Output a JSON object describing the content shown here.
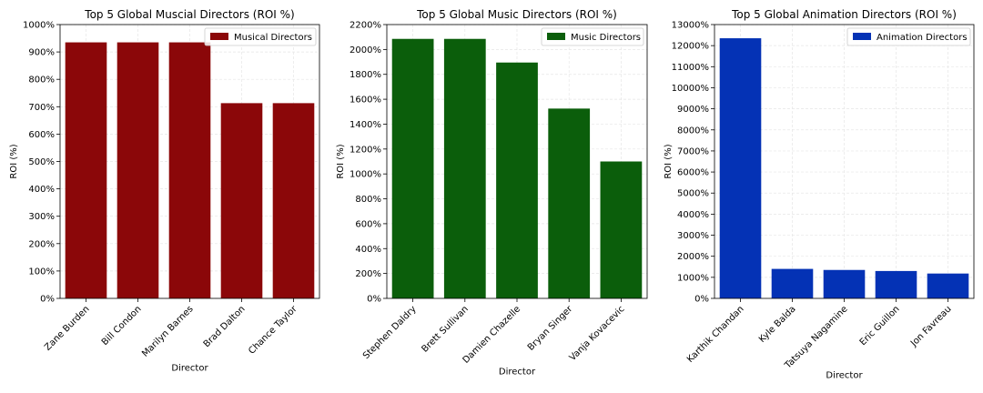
{
  "chart_data": [
    {
      "type": "bar",
      "title": "Top 5 Global Muscial Directors (ROI %)",
      "xlabel": "Director",
      "ylabel": "ROI (%)",
      "categories": [
        "Zane Burden",
        "Bill Condon",
        "Marilyn Barnes",
        "Brad Dalton",
        "Chance Taylor"
      ],
      "series": [
        {
          "name": "Musical Directors",
          "values": [
            935,
            935,
            935,
            713,
            713
          ]
        }
      ],
      "ylim": [
        0,
        1000
      ],
      "yticks": [
        0,
        100,
        200,
        300,
        400,
        500,
        600,
        700,
        800,
        900,
        1000
      ],
      "ytick_labels": [
        "0%",
        "100%",
        "200%",
        "300%",
        "400%",
        "500%",
        "600%",
        "700%",
        "800%",
        "900%",
        "1000%"
      ],
      "color": "#8b0709",
      "grid": true,
      "legend": "top-right"
    },
    {
      "type": "bar",
      "title": "Top 5 Global Music Directors (ROI %)",
      "xlabel": "Director",
      "ylabel": "ROI (%)",
      "categories": [
        "Stephen Daldry",
        "Brett Sullivan",
        "Damien Chazelle",
        "Bryan Singer",
        "Vanja Kovacevic"
      ],
      "series": [
        {
          "name": "Music Directors",
          "values": [
            2085,
            2085,
            1895,
            1525,
            1100
          ]
        }
      ],
      "ylim": [
        0,
        2200
      ],
      "yticks": [
        0,
        200,
        400,
        600,
        800,
        1000,
        1200,
        1400,
        1600,
        1800,
        2000,
        2200
      ],
      "ytick_labels": [
        "0%",
        "200%",
        "400%",
        "600%",
        "800%",
        "1000%",
        "1200%",
        "1400%",
        "1600%",
        "1800%",
        "2000%",
        "2200%"
      ],
      "color": "#0b5e0b",
      "grid": true,
      "legend": "top-right"
    },
    {
      "type": "bar",
      "title": "Top 5 Global Animation Directors (ROI %)",
      "xlabel": "Director",
      "ylabel": "ROI (%)",
      "categories": [
        "Karthik Chandan",
        "Kyle Balda",
        "Tatsuya Nagamine",
        "Eric Guillon",
        "Jon Favreau"
      ],
      "series": [
        {
          "name": "Animation Directors",
          "values": [
            12350,
            1400,
            1350,
            1300,
            1180
          ]
        }
      ],
      "ylim": [
        0,
        13000
      ],
      "yticks": [
        0,
        1000,
        2000,
        3000,
        4000,
        5000,
        6000,
        7000,
        8000,
        9000,
        10000,
        11000,
        12000,
        13000
      ],
      "ytick_labels": [
        "0%",
        "1000%",
        "2000%",
        "3000%",
        "4000%",
        "5000%",
        "6000%",
        "7000%",
        "8000%",
        "9000%",
        "10000%",
        "11000%",
        "12000%",
        "13000%"
      ],
      "color": "#0432b5",
      "grid": true,
      "legend": "top-right"
    }
  ]
}
